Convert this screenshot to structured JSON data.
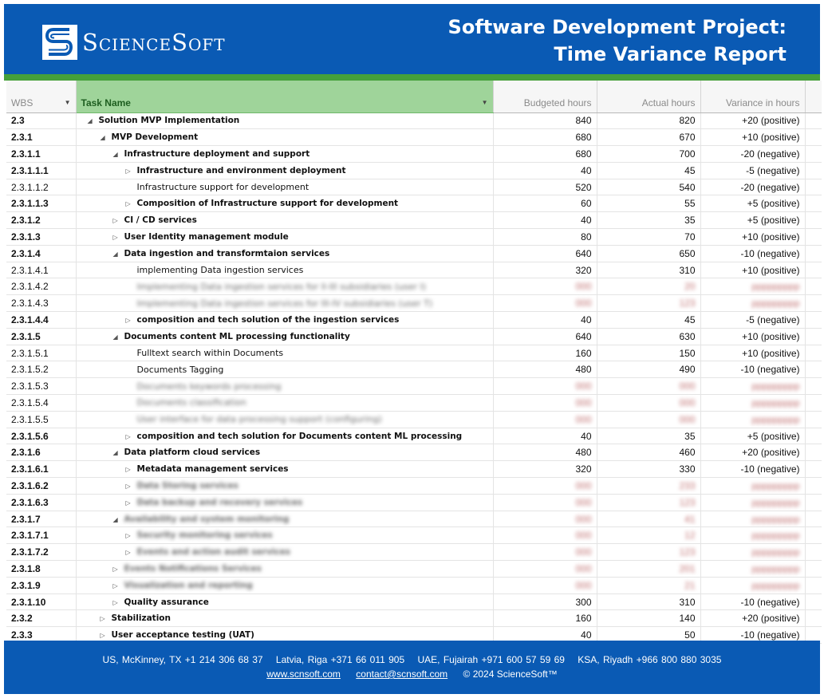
{
  "header": {
    "brand": "ScienceSoft",
    "title_line1": "Software Development Project:",
    "title_line2": "Time Variance Report"
  },
  "table": {
    "columns": [
      "WBS",
      "Task Name",
      "Budgeted hours",
      "Actual hours",
      "Variance in hours"
    ],
    "rows": [
      {
        "wbs": "2.3",
        "task": "Solution MVP Implementation",
        "indent": 0,
        "toggle": "expanded",
        "bold": true,
        "budget": "840",
        "actual": "820",
        "variance": "+20 (positive)"
      },
      {
        "wbs": "2.3.1",
        "task": "MVP Development",
        "indent": 1,
        "toggle": "expanded",
        "bold": true,
        "budget": "680",
        "actual": "670",
        "variance": "+10 (positive)"
      },
      {
        "wbs": "2.3.1.1",
        "task": "Infrastructure deployment and support",
        "indent": 2,
        "toggle": "expanded",
        "bold": true,
        "budget": "680",
        "actual": "700",
        "variance": "-20 (negative)"
      },
      {
        "wbs": "2.3.1.1.1",
        "task": "Infrastructure and environment deployment",
        "indent": 3,
        "toggle": "collapsed",
        "bold": true,
        "budget": "40",
        "actual": "45",
        "variance": "-5 (negative)"
      },
      {
        "wbs": "2.3.1.1.2",
        "task": "Infrastructure support for development",
        "indent": 3,
        "toggle": "none",
        "bold": false,
        "budget": "520",
        "actual": "540",
        "variance": "-20 (negative)"
      },
      {
        "wbs": "2.3.1.1.3",
        "task": "Composition of Infrastructure support for development",
        "indent": 3,
        "toggle": "collapsed",
        "bold": true,
        "budget": "60",
        "actual": "55",
        "variance": "+5 (positive)"
      },
      {
        "wbs": "2.3.1.2",
        "task": "CI / CD services",
        "indent": 2,
        "toggle": "collapsed",
        "bold": true,
        "budget": "40",
        "actual": "35",
        "variance": "+5 (positive)"
      },
      {
        "wbs": "2.3.1.3",
        "task": "User Identity management module",
        "indent": 2,
        "toggle": "collapsed",
        "bold": true,
        "budget": "80",
        "actual": "70",
        "variance": "+10 (positive)"
      },
      {
        "wbs": "2.3.1.4",
        "task": "Data ingestion and transformtaion services",
        "indent": 2,
        "toggle": "expanded",
        "bold": true,
        "budget": "640",
        "actual": "650",
        "variance": "-10 (negative)"
      },
      {
        "wbs": "2.3.1.4.1",
        "task": "implementing Data ingestion services",
        "indent": 3,
        "toggle": "none",
        "bold": false,
        "budget": "320",
        "actual": "310",
        "variance": "+10 (positive)"
      },
      {
        "wbs": "2.3.1.4.2",
        "task": "Implementing Data ingestion services for ll-III subsidiaries (user I)",
        "indent": 3,
        "toggle": "none",
        "bold": false,
        "blur": true,
        "budget": "000",
        "actual": "20",
        "variance": "ppppppppp"
      },
      {
        "wbs": "2.3.1.4.3",
        "task": "Implementing Data ingestion services for III-IV subsidiaries (user T)",
        "indent": 3,
        "toggle": "none",
        "bold": false,
        "blur": true,
        "budget": "000",
        "actual": "123",
        "variance": "ppppppppp"
      },
      {
        "wbs": "2.3.1.4.4",
        "task": "composition and tech solution of the ingestion services",
        "indent": 3,
        "toggle": "collapsed",
        "bold": true,
        "budget": "40",
        "actual": "45",
        "variance": "-5 (negative)"
      },
      {
        "wbs": "2.3.1.5",
        "task": "Documents content ML processing functionality",
        "indent": 2,
        "toggle": "expanded",
        "bold": true,
        "budget": "640",
        "actual": "630",
        "variance": "+10 (positive)"
      },
      {
        "wbs": "2.3.1.5.1",
        "task": "Fulltext search within Documents",
        "indent": 3,
        "toggle": "none",
        "bold": false,
        "budget": "160",
        "actual": "150",
        "variance": "+10 (positive)"
      },
      {
        "wbs": "2.3.1.5.2",
        "task": "Documents Tagging",
        "indent": 3,
        "toggle": "none",
        "bold": false,
        "budget": "480",
        "actual": "490",
        "variance": "-10 (negative)"
      },
      {
        "wbs": "2.3.1.5.3",
        "task": "Documents keywords processing",
        "indent": 3,
        "toggle": "none",
        "bold": false,
        "blur": true,
        "budget": "000",
        "actual": "000",
        "variance": "ppppppppp"
      },
      {
        "wbs": "2.3.1.5.4",
        "task": "Documents classification",
        "indent": 3,
        "toggle": "none",
        "bold": false,
        "blur": true,
        "budget": "000",
        "actual": "000",
        "variance": "ppppppppp"
      },
      {
        "wbs": "2.3.1.5.5",
        "task": "User interface for data processing support (configuring)",
        "indent": 3,
        "toggle": "none",
        "bold": false,
        "blur": true,
        "budget": "000",
        "actual": "000",
        "variance": "ppppppppp"
      },
      {
        "wbs": "2.3.1.5.6",
        "task": "composition and tech solution for Documents content ML processing",
        "indent": 3,
        "toggle": "collapsed",
        "bold": true,
        "budget": "40",
        "actual": "35",
        "variance": "+5 (positive)"
      },
      {
        "wbs": "2.3.1.6",
        "task": "Data platform cloud services",
        "indent": 2,
        "toggle": "expanded",
        "bold": true,
        "budget": "480",
        "actual": "460",
        "variance": "+20 (positive)"
      },
      {
        "wbs": "2.3.1.6.1",
        "task": "Metadata management services",
        "indent": 3,
        "toggle": "collapsed",
        "bold": true,
        "budget": "320",
        "actual": "330",
        "variance": "-10 (negative)"
      },
      {
        "wbs": "2.3.1.6.2",
        "task": "Data Storing services",
        "indent": 3,
        "toggle": "collapsed",
        "bold": true,
        "blur": true,
        "budget": "000",
        "actual": "233",
        "variance": "ppppppppp"
      },
      {
        "wbs": "2.3.1.6.3",
        "task": "Data backup and recovery services",
        "indent": 3,
        "toggle": "collapsed",
        "bold": true,
        "blur": true,
        "budget": "000",
        "actual": "123",
        "variance": "ppppppppp"
      },
      {
        "wbs": "2.3.1.7",
        "task": "Availability and system monitoring",
        "indent": 2,
        "toggle": "expanded",
        "bold": true,
        "blur": true,
        "budget": "000",
        "actual": "41",
        "variance": "ppppppppp"
      },
      {
        "wbs": "2.3.1.7.1",
        "task": "Security monitoring services",
        "indent": 3,
        "toggle": "collapsed",
        "bold": true,
        "blur": true,
        "budget": "000",
        "actual": "12",
        "variance": "ppppppppp"
      },
      {
        "wbs": "2.3.1.7.2",
        "task": "Events and action audit services",
        "indent": 3,
        "toggle": "collapsed",
        "bold": true,
        "blur": true,
        "budget": "000",
        "actual": "123",
        "variance": "ppppppppp"
      },
      {
        "wbs": "2.3.1.8",
        "task": "Events Notifications Services",
        "indent": 2,
        "toggle": "collapsed",
        "bold": true,
        "blur": true,
        "budget": "000",
        "actual": "201",
        "variance": "ppppppppp"
      },
      {
        "wbs": "2.3.1.9",
        "task": "Visualization and reporting",
        "indent": 2,
        "toggle": "collapsed",
        "bold": true,
        "blur": true,
        "budget": "000",
        "actual": "21",
        "variance": "ppppppppp"
      },
      {
        "wbs": "2.3.1.10",
        "task": "Quality assurance",
        "indent": 2,
        "toggle": "collapsed",
        "bold": true,
        "budget": "300",
        "actual": "310",
        "variance": "-10 (negative)"
      },
      {
        "wbs": "2.3.2",
        "task": "Stabilization",
        "indent": 1,
        "toggle": "collapsed",
        "bold": true,
        "budget": "160",
        "actual": "140",
        "variance": "+20 (positive)"
      },
      {
        "wbs": "2.3.3",
        "task": "User acceptance testing (UAT)",
        "indent": 1,
        "toggle": "collapsed",
        "bold": true,
        "budget": "40",
        "actual": "50",
        "variance": "-10 (negative)"
      }
    ]
  },
  "footer": {
    "contacts": [
      "US, McKinney, TX +1 214 306 68 37",
      "Latvia, Riga +371 66 011 905",
      "UAE, Fujairah +971 600 57 59 69",
      "KSA, Riyadh +966 800 880 3035"
    ],
    "website": "www.scnsoft.com",
    "email": "contact@scnsoft.com",
    "copyright": "© 2024 ScienceSoft™"
  },
  "colors": {
    "header_bg": "#0a5ab4",
    "accent_green": "#45a03a",
    "task_header_bg": "#9fd49a"
  }
}
